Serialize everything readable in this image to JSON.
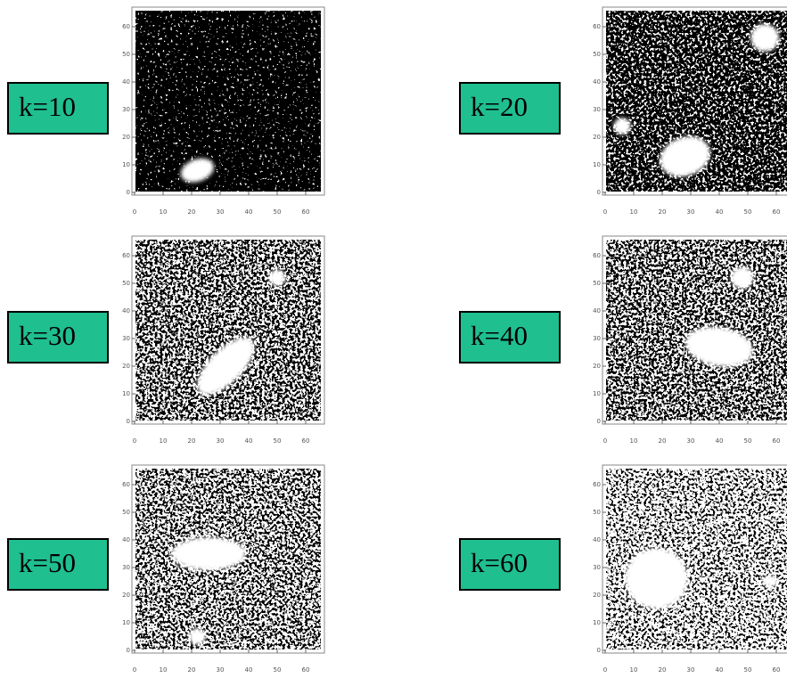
{
  "panels": [
    {
      "label": "k=10"
    },
    {
      "label": "k=20"
    },
    {
      "label": "k=30"
    },
    {
      "label": "k=40"
    },
    {
      "label": "k=50"
    },
    {
      "label": "k=60"
    }
  ],
  "ticks": [
    0,
    10,
    20,
    30,
    40,
    50,
    60
  ]
}
